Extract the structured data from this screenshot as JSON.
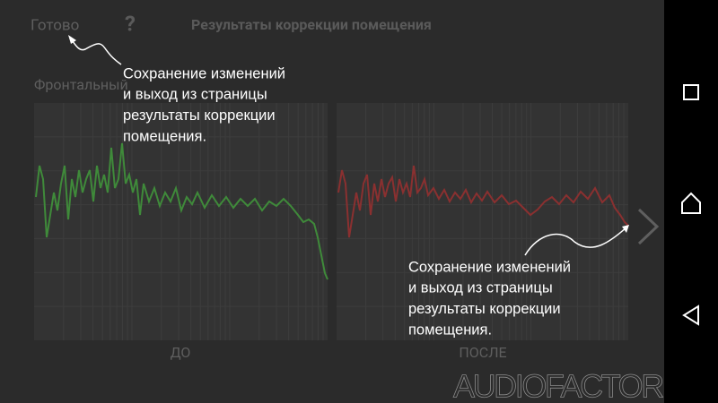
{
  "header": {
    "done": "Готово",
    "help": "?",
    "title": "Результаты коррекции помещения"
  },
  "channel": "Фронтальный",
  "panels": [
    {
      "label": "ДО"
    },
    {
      "label": "ПОСЛЕ"
    }
  ],
  "annotations": [
    {
      "lines": [
        "Сохранение изменений",
        "и выход из страницы",
        "результаты коррекции",
        "помещения."
      ]
    },
    {
      "lines": [
        "Сохранение изменений",
        "и выход из страницы",
        "результаты коррекции",
        "помещения."
      ]
    }
  ],
  "watermark": "AUDIOFACTOR.RU"
}
